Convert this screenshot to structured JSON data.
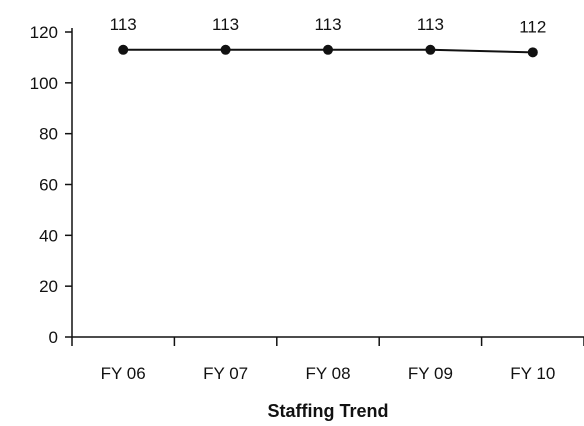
{
  "chart_data": {
    "type": "line",
    "categories": [
      "FY 06",
      "FY 07",
      "FY 08",
      "FY 09",
      "FY 10"
    ],
    "values": [
      113,
      113,
      113,
      113,
      112
    ],
    "data_labels": [
      "113",
      "113",
      "113",
      "113",
      "112"
    ],
    "xlabel": "Staffing Trend",
    "ylabel": "",
    "ylim": [
      0,
      120
    ],
    "yticks": [
      "0",
      "20",
      "40",
      "60",
      "80",
      "100",
      "120"
    ],
    "ytick_values": [
      0,
      20,
      40,
      60,
      80,
      100,
      120
    ],
    "grid": false,
    "colors": {
      "line": "#111111",
      "marker": "#111111"
    }
  }
}
